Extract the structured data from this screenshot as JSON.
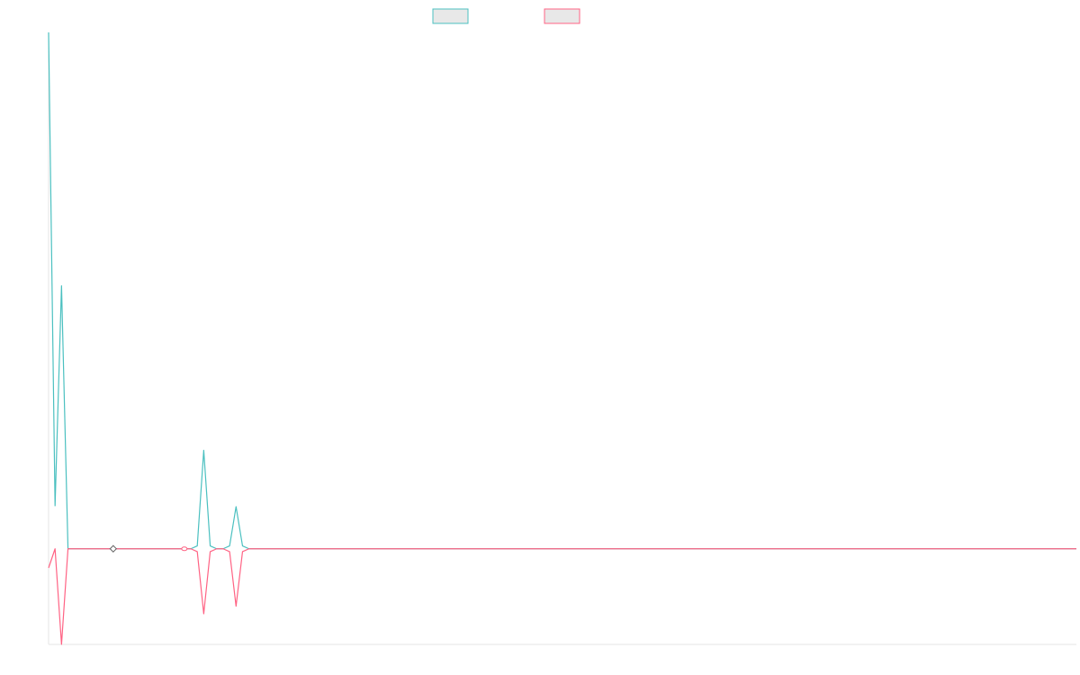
{
  "chart_data": {
    "type": "line",
    "title": "",
    "xlabel": "",
    "ylabel": "",
    "x": [
      0,
      1,
      2,
      3,
      4,
      5,
      6,
      7,
      8,
      9,
      10,
      11,
      12,
      13,
      14,
      15,
      16,
      17,
      18,
      19,
      20,
      21,
      22,
      23,
      24,
      25,
      26,
      27,
      28,
      29,
      30,
      31,
      32,
      33,
      34,
      35,
      36,
      37,
      38,
      39,
      40,
      41,
      42,
      43,
      44,
      45,
      46,
      47,
      48,
      49,
      50,
      51,
      52,
      53,
      54,
      55,
      56,
      57,
      58,
      59,
      60,
      61,
      62,
      63,
      64,
      65,
      66,
      67,
      68,
      69,
      70,
      71,
      72,
      73,
      74,
      75,
      76,
      77,
      78,
      79,
      80,
      81,
      82,
      83,
      84,
      85,
      86,
      87,
      88,
      89,
      90,
      91,
      92,
      93,
      94,
      95,
      96,
      97,
      98,
      99,
      100,
      101,
      102,
      103,
      104,
      105,
      106,
      107,
      108,
      109,
      110,
      111,
      112,
      113,
      114,
      115,
      116,
      117,
      118,
      119,
      120,
      121,
      122,
      123,
      124,
      125,
      126,
      127,
      128,
      129,
      130,
      131,
      132,
      133,
      134,
      135,
      136,
      137,
      138,
      139,
      140,
      141,
      142,
      143,
      144,
      145,
      146,
      147,
      148,
      149,
      150,
      151,
      152,
      153,
      154,
      155,
      156,
      157,
      158,
      159
    ],
    "ylim": [
      -100,
      540
    ],
    "grid": false,
    "legend_position": "top-center",
    "series": [
      {
        "color": "#4bc0c0",
        "fill": "#e8e8e8",
        "values": [
          540,
          45,
          275,
          0,
          0,
          0,
          0,
          0,
          0,
          0,
          0,
          0,
          0,
          0,
          0,
          0,
          0,
          0,
          0,
          0,
          0,
          0,
          0,
          3,
          103,
          3,
          0,
          0,
          3,
          44,
          3,
          0,
          0,
          0,
          0,
          0,
          0,
          0,
          0,
          0,
          0,
          0,
          0,
          0,
          0,
          0,
          0,
          0,
          0,
          0,
          0,
          0,
          0,
          0,
          0,
          0,
          0,
          0,
          0,
          0,
          0,
          0,
          0,
          0,
          0,
          0,
          0,
          0,
          0,
          0,
          0,
          0,
          0,
          0,
          0,
          0,
          0,
          0,
          0,
          0,
          0,
          0,
          0,
          0,
          0,
          0,
          0,
          0,
          0,
          0,
          0,
          0,
          0,
          0,
          0,
          0,
          0,
          0,
          0,
          0,
          0,
          0,
          0,
          0,
          0,
          0,
          0,
          0,
          0,
          0,
          0,
          0,
          0,
          0,
          0,
          0,
          0,
          0,
          0,
          0,
          0,
          0,
          0,
          0,
          0,
          0,
          0,
          0,
          0,
          0,
          0,
          0,
          0,
          0,
          0,
          0,
          0,
          0,
          0,
          0,
          0,
          0,
          0,
          0,
          0,
          0,
          0,
          0,
          0,
          0,
          0,
          0,
          0,
          0,
          0,
          0,
          0,
          0,
          0,
          0
        ]
      },
      {
        "color": "#ff6384",
        "fill": "#e8e8e8",
        "values": [
          -20,
          0,
          -100,
          0,
          0,
          0,
          0,
          0,
          0,
          0,
          0,
          0,
          0,
          0,
          0,
          0,
          0,
          0,
          0,
          0,
          0,
          0,
          0,
          -3,
          -68,
          -3,
          0,
          0,
          -3,
          -60,
          -3,
          0,
          0,
          0,
          0,
          0,
          0,
          0,
          0,
          0,
          0,
          0,
          0,
          0,
          0,
          0,
          0,
          0,
          0,
          0,
          0,
          0,
          0,
          0,
          0,
          0,
          0,
          0,
          0,
          0,
          0,
          0,
          0,
          0,
          0,
          0,
          0,
          0,
          0,
          0,
          0,
          0,
          0,
          0,
          0,
          0,
          0,
          0,
          0,
          0,
          0,
          0,
          0,
          0,
          0,
          0,
          0,
          0,
          0,
          0,
          0,
          0,
          0,
          0,
          0,
          0,
          0,
          0,
          0,
          0,
          0,
          0,
          0,
          0,
          0,
          0,
          0,
          0,
          0,
          0,
          0,
          0,
          0,
          0,
          0,
          0,
          0,
          0,
          0,
          0,
          0,
          0,
          0,
          0,
          0,
          0,
          0,
          0,
          0,
          0,
          0,
          0,
          0,
          0,
          0,
          0,
          0,
          0,
          0,
          0,
          0,
          0,
          0,
          0,
          0,
          0,
          0,
          0,
          0,
          0,
          0,
          0,
          0,
          0,
          0,
          0,
          0,
          0,
          0,
          0
        ]
      }
    ],
    "markers": [
      {
        "x": 10,
        "y": 0,
        "shape": "diamond",
        "color": "#666666"
      },
      {
        "x": 21,
        "y": 0,
        "shape": "circle",
        "color": "#ff6384"
      }
    ]
  }
}
